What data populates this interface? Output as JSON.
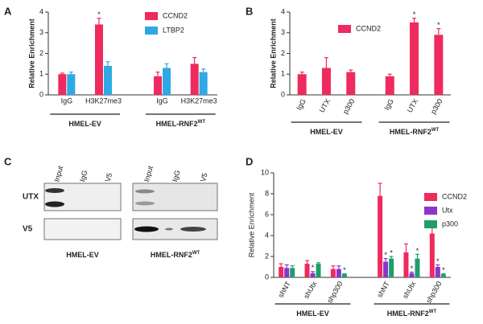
{
  "chart_data": [
    {
      "type": "bar",
      "panel": "A",
      "ylabel": "Relative Enrichment",
      "categories": [
        "IgG",
        "H3K27me3",
        "IgG",
        "H3K27me3"
      ],
      "groups": [
        {
          "text": "HMEL-EV"
        },
        {
          "text": "HMEL-RNF2",
          "sup": "WT"
        }
      ],
      "series": [
        {
          "name": "CCND2",
          "color": "#ee2a5e",
          "values": [
            1.0,
            3.4,
            0.9,
            1.5
          ],
          "errors": [
            0.05,
            0.3,
            0.2,
            0.3
          ],
          "significance": [
            null,
            "*",
            null,
            null
          ]
        },
        {
          "name": "LTBP2",
          "color": "#2ea9e6",
          "values": [
            1.0,
            1.4,
            1.3,
            1.1
          ],
          "errors": [
            0.1,
            0.2,
            0.2,
            0.15
          ],
          "significance": [
            null,
            null,
            null,
            null
          ]
        }
      ],
      "ylim": [
        0,
        4
      ],
      "yticks": [
        0,
        1,
        2,
        3,
        4
      ]
    },
    {
      "type": "bar",
      "panel": "B",
      "ylabel": "Relative Enrichment",
      "categories": [
        "IgG",
        "UTX",
        "p300",
        "IgG",
        "UTX",
        "p300"
      ],
      "groups": [
        {
          "text": "HMEL-EV"
        },
        {
          "text": "HMEL-RNF2",
          "sup": "WT"
        }
      ],
      "series": [
        {
          "name": "CCND2",
          "color": "#ee2a5e",
          "values": [
            1.0,
            1.3,
            1.1,
            0.9,
            3.5,
            2.9
          ],
          "errors": [
            0.1,
            0.5,
            0.1,
            0.1,
            0.2,
            0.3
          ],
          "significance": [
            null,
            null,
            null,
            null,
            "*",
            "*"
          ]
        }
      ],
      "ylim": [
        0,
        4
      ],
      "yticks": [
        0,
        1,
        2,
        3,
        4
      ]
    },
    {
      "type": "bar",
      "panel": "D",
      "ylabel": "Relative Enrichment",
      "categories": [
        "shNT",
        "shUtx",
        "shp300",
        "shNT",
        "shUtx",
        "shp300"
      ],
      "groups": [
        {
          "text": "HMEL-EV"
        },
        {
          "text": "HMEL-RNF2",
          "sup": "WT"
        }
      ],
      "series": [
        {
          "name": "CCND2",
          "color": "#ee2a5e",
          "values": [
            1.0,
            1.3,
            0.8,
            7.8,
            2.4,
            4.2
          ],
          "errors": [
            0.3,
            0.3,
            0.3,
            1.2,
            0.8,
            1.1
          ],
          "significance": [
            null,
            null,
            null,
            null,
            null,
            null
          ]
        },
        {
          "name": "Utx",
          "color": "#8b35c9",
          "values": [
            0.9,
            0.4,
            0.8,
            1.5,
            0.4,
            1.0
          ],
          "errors": [
            0.3,
            0.15,
            0.3,
            0.3,
            0.1,
            0.2
          ],
          "significance": [
            null,
            "*",
            null,
            "*",
            "*",
            "*"
          ]
        },
        {
          "name": "p300",
          "color": "#1f9e6b",
          "values": [
            0.9,
            1.3,
            0.3,
            1.8,
            1.8,
            0.3
          ],
          "errors": [
            0.2,
            0.1,
            0.05,
            0.2,
            0.4,
            0.05
          ],
          "significance": [
            null,
            null,
            "*",
            "*",
            "*",
            "*"
          ]
        }
      ],
      "ylim": [
        0,
        10
      ],
      "yticks": [
        0,
        2,
        4,
        6,
        8,
        10
      ]
    }
  ],
  "blot": {
    "panel": "C",
    "rows": [
      "UTX",
      "V5"
    ],
    "lanes": [
      "Input",
      "IgG",
      "V5"
    ],
    "groups": [
      {
        "text": "HMEL-EV"
      },
      {
        "text": "HMEL-RNF2",
        "sup": "WT"
      }
    ]
  }
}
